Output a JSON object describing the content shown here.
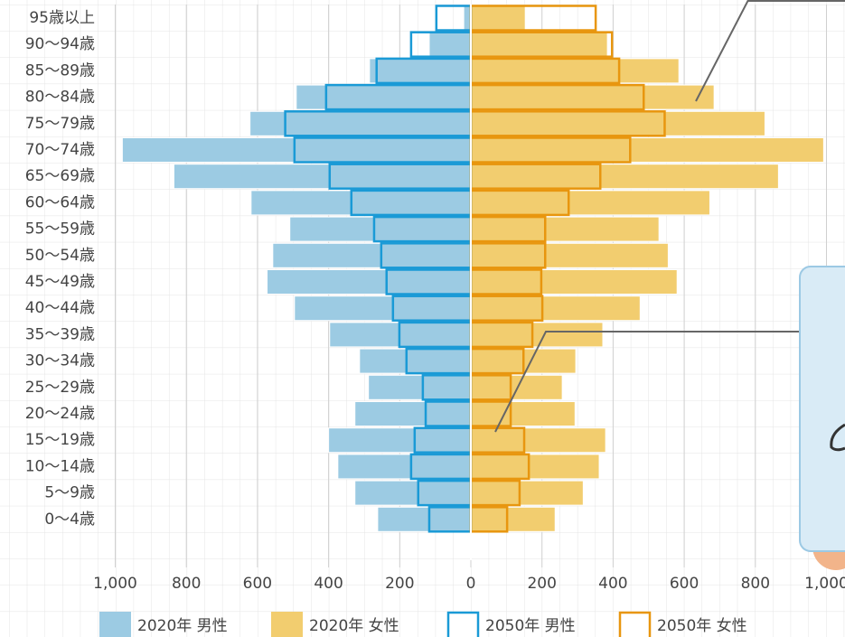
{
  "chart_data": {
    "type": "pyramid",
    "categories": [
      "95歳以上",
      "90〜94歳",
      "85〜89歳",
      "80〜84歳",
      "75〜79歳",
      "70〜74歳",
      "65〜69歳",
      "60〜64歳",
      "55〜59歳",
      "50〜54歳",
      "45〜49歳",
      "40〜44歳",
      "35〜39歳",
      "30〜34歳",
      "25〜29歳",
      "20〜24歳",
      "15〜19歳",
      "10〜14歳",
      "5〜9歳",
      "0〜4歳"
    ],
    "series": [
      {
        "name": "2020年 男性",
        "color": "#9ccbe3",
        "side": "left",
        "style": "fill",
        "values": [
          20,
          117,
          285,
          491,
          621,
          980,
          835,
          618,
          509,
          557,
          573,
          496,
          397,
          313,
          288,
          326,
          400,
          374,
          326,
          262
        ]
      },
      {
        "name": "2020年 女性",
        "color": "#f2cd6f",
        "side": "right",
        "style": "fill",
        "values": [
          153,
          384,
          585,
          684,
          827,
          992,
          865,
          672,
          529,
          555,
          580,
          476,
          371,
          295,
          257,
          293,
          379,
          361,
          316,
          237
        ]
      },
      {
        "name": "2050年 男性",
        "color": "#1a9ad6",
        "side": "left",
        "style": "outline",
        "values": [
          97,
          168,
          265,
          407,
          522,
          496,
          397,
          336,
          272,
          252,
          237,
          219,
          201,
          181,
          135,
          127,
          158,
          168,
          148,
          117
        ]
      },
      {
        "name": "2050年 女性",
        "color": "#e8960f",
        "side": "right",
        "style": "outline",
        "values": [
          351,
          397,
          417,
          486,
          545,
          448,
          364,
          275,
          209,
          209,
          198,
          201,
          173,
          148,
          112,
          112,
          150,
          163,
          137,
          102
        ]
      }
    ],
    "xlim": [
      -1000,
      1000
    ],
    "xticks": [
      {
        "value": -1000,
        "label": "1,000"
      },
      {
        "value": -800,
        "label": "800"
      },
      {
        "value": -600,
        "label": "600"
      },
      {
        "value": -400,
        "label": "400"
      },
      {
        "value": -200,
        "label": "200"
      },
      0,
      200,
      400,
      600,
      800,
      {
        "value": 1000,
        "label": "1,000"
      }
    ],
    "grid": true
  }
}
